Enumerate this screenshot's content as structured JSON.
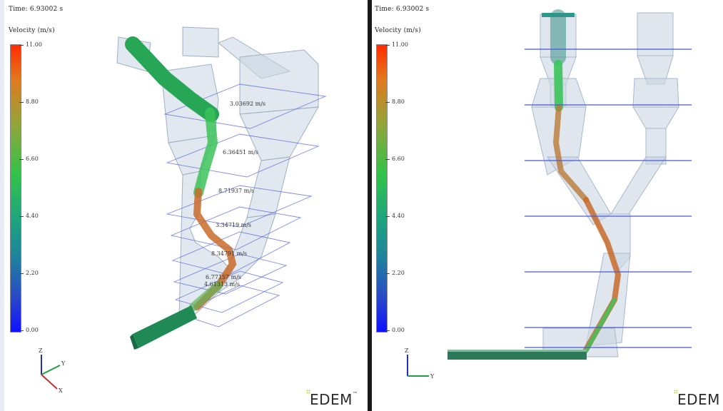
{
  "left_view": {
    "time_label": "Time: 6.93002 s",
    "colorbar_title": "Velocity (m/s)",
    "ticks": [
      "11.00",
      "8.80",
      "6.60",
      "4.40",
      "2.20",
      "0.00"
    ],
    "velocity_labels": [
      "3.03692 m/s",
      "6.36451 m/s",
      "8.71937 m/s",
      "3.34719 m/s",
      "8.34791 m/s",
      "6.77157 m/s",
      "4.61313 m/s"
    ],
    "axes": {
      "z": "Z",
      "y": "Y",
      "x": "X"
    },
    "logo": "EDEM",
    "logo_tm": "™"
  },
  "right_view": {
    "time_label": "Time: 6.93002 s",
    "colorbar_title": "Velocity (m/s)",
    "ticks": [
      "11.00",
      "8.80",
      "6.60",
      "4.40",
      "2.20",
      "0.00"
    ],
    "axes": {
      "z": "Z",
      "y": "Y"
    },
    "logo": "EDEM"
  },
  "colors": {
    "particle_green": "#2fb45a",
    "particle_orange": "#d9702a",
    "chute_fill": "#c9d5e2",
    "slice_blue": "#3f4fd8",
    "divider": "#1a1a1a"
  }
}
